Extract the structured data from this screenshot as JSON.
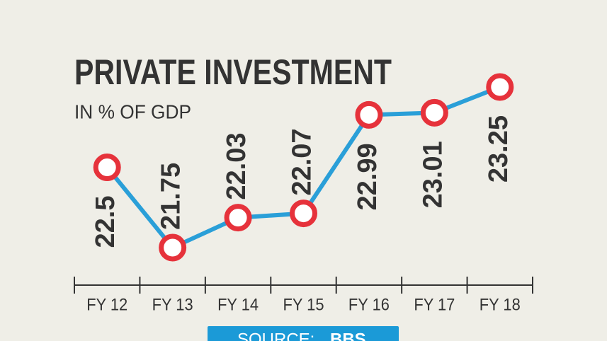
{
  "chart_data": {
    "type": "line",
    "title": "PRIVATE INVESTMENT",
    "subtitle": "IN % OF GDP",
    "categories": [
      "FY 12",
      "FY 13",
      "FY 14",
      "FY 15",
      "FY 16",
      "FY 17",
      "FY 18"
    ],
    "values": [
      22.5,
      21.75,
      22.03,
      22.07,
      22.99,
      23.01,
      23.25
    ],
    "color": "#2a9fd8",
    "marker_color": "#e6323b",
    "source_label": "SOURCE:",
    "source_name": "BBS"
  }
}
